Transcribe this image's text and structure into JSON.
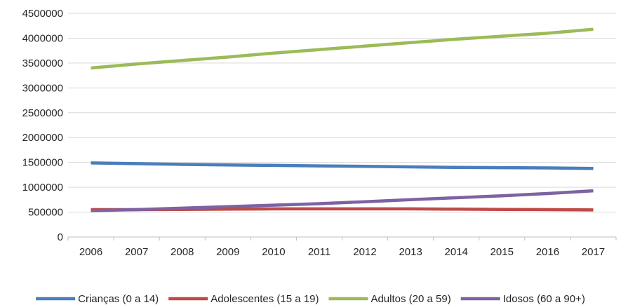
{
  "chart_data": {
    "type": "line",
    "title": "",
    "xlabel": "",
    "ylabel": "",
    "categories": [
      "2006",
      "2007",
      "2008",
      "2009",
      "2010",
      "2011",
      "2012",
      "2013",
      "2014",
      "2015",
      "2016",
      "2017"
    ],
    "ylim": [
      0,
      4500000
    ],
    "yticks": [
      "0",
      "500000",
      "1000000",
      "1500000",
      "2000000",
      "2500000",
      "3000000",
      "3500000",
      "4000000",
      "4500000"
    ],
    "grid": true,
    "legend_position": "bottom",
    "series": [
      {
        "name": "Crianças (0 a 14)",
        "color": "#4a7ebb",
        "values": [
          1490000,
          1475000,
          1460000,
          1450000,
          1440000,
          1430000,
          1420000,
          1410000,
          1400000,
          1395000,
          1390000,
          1380000
        ]
      },
      {
        "name": "Adolescentes (15 a 19)",
        "color": "#be4b48",
        "values": [
          550000,
          550000,
          555000,
          560000,
          565000,
          565000,
          565000,
          565000,
          560000,
          555000,
          550000,
          545000
        ]
      },
      {
        "name": "Adultos (20 a 59)",
        "color": "#9bbb59",
        "values": [
          3400000,
          3480000,
          3550000,
          3620000,
          3700000,
          3770000,
          3840000,
          3910000,
          3980000,
          4040000,
          4100000,
          4180000
        ]
      },
      {
        "name": "Idosos (60 a 90+)",
        "color": "#7e62a1",
        "values": [
          530000,
          550000,
          580000,
          610000,
          640000,
          670000,
          710000,
          750000,
          790000,
          830000,
          875000,
          930000
        ]
      }
    ]
  }
}
